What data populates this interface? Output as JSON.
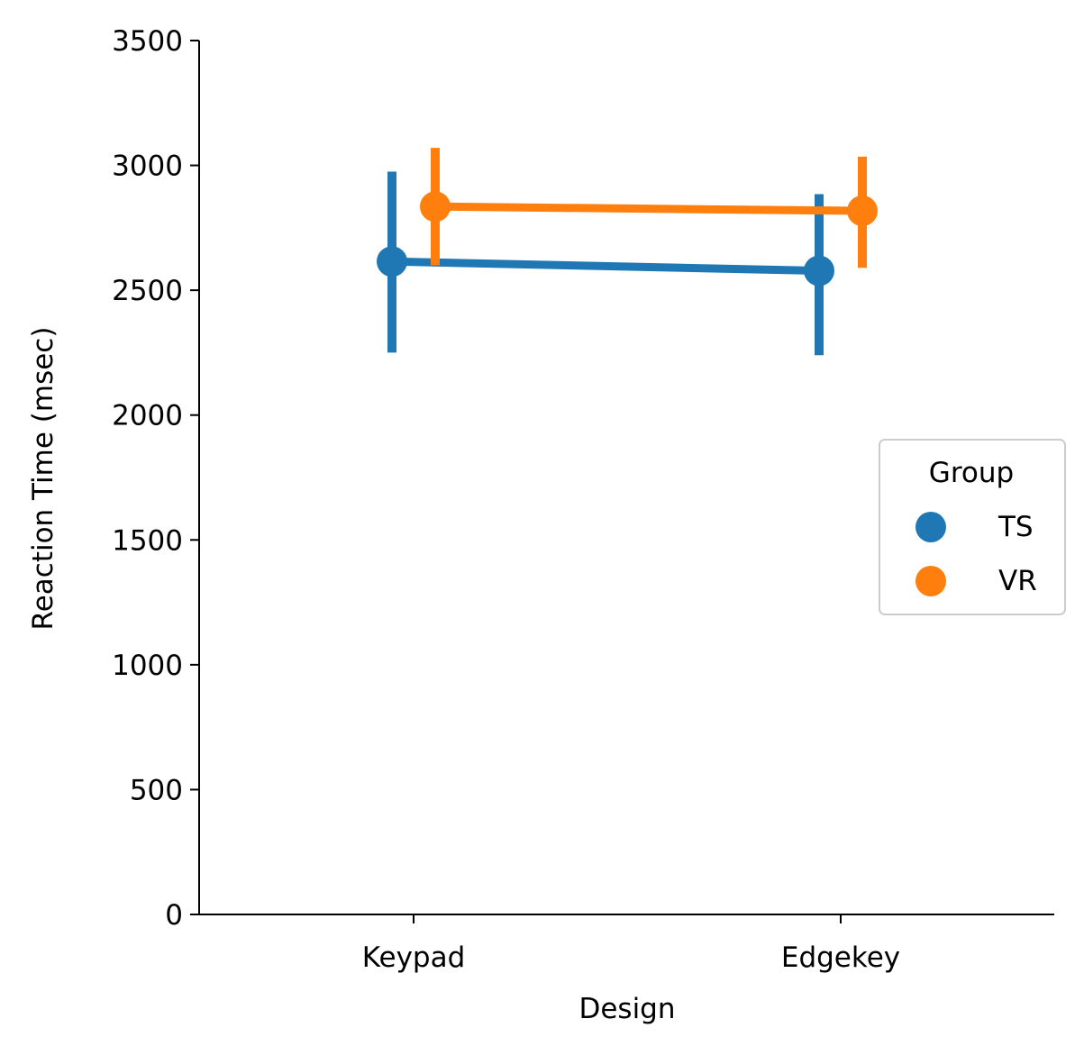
{
  "chart_data": {
    "type": "line",
    "title": "",
    "xlabel": "Design",
    "ylabel": "Reaction Time (msec)",
    "categories": [
      "Keypad",
      "Edgekey"
    ],
    "ylim": [
      0,
      3500
    ],
    "yticks": [
      "0",
      "500",
      "1000",
      "1500",
      "2000",
      "2500",
      "3000",
      "3500"
    ],
    "yticks_values": [
      0,
      500,
      1000,
      1500,
      2000,
      2500,
      3000,
      3500
    ],
    "grid": false,
    "legend": {
      "title": "Group",
      "placement": "center-right"
    },
    "series": [
      {
        "name": "TS",
        "color": "#1f77b4",
        "values": [
          2615,
          2578
        ],
        "ci_low": [
          2250,
          2240
        ],
        "ci_high": [
          2975,
          2885
        ]
      },
      {
        "name": "VR",
        "color": "#ff7f0e",
        "values": [
          2835,
          2818
        ],
        "ci_low": [
          2600,
          2590
        ],
        "ci_high": [
          3070,
          3035
        ]
      }
    ]
  }
}
